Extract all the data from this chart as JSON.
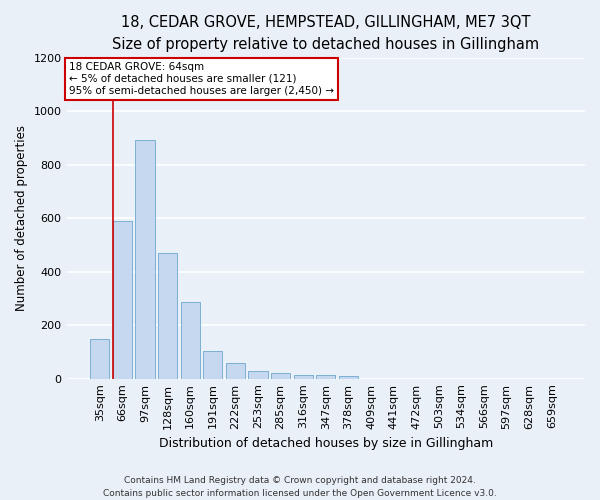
{
  "title1": "18, CEDAR GROVE, HEMPSTEAD, GILLINGHAM, ME7 3QT",
  "title2": "Size of property relative to detached houses in Gillingham",
  "xlabel": "Distribution of detached houses by size in Gillingham",
  "ylabel": "Number of detached properties",
  "categories": [
    "35sqm",
    "66sqm",
    "97sqm",
    "128sqm",
    "160sqm",
    "191sqm",
    "222sqm",
    "253sqm",
    "285sqm",
    "316sqm",
    "347sqm",
    "378sqm",
    "409sqm",
    "441sqm",
    "472sqm",
    "503sqm",
    "534sqm",
    "566sqm",
    "597sqm",
    "628sqm",
    "659sqm"
  ],
  "values": [
    150,
    590,
    890,
    470,
    285,
    105,
    60,
    28,
    20,
    14,
    12,
    10,
    0,
    0,
    0,
    0,
    0,
    0,
    0,
    0,
    0
  ],
  "bar_color": "#c5d8f0",
  "bar_edge_color": "#7bafd4",
  "vline_color": "#cc0000",
  "annotation_title": "18 CEDAR GROVE: 64sqm",
  "annotation_line1": "← 5% of detached houses are smaller (121)",
  "annotation_line2": "95% of semi-detached houses are larger (2,450) →",
  "annotation_box_edge": "#cc0000",
  "ylim": [
    0,
    1200
  ],
  "yticks": [
    0,
    200,
    400,
    600,
    800,
    1000,
    1200
  ],
  "footer1": "Contains HM Land Registry data © Crown copyright and database right 2024.",
  "footer2": "Contains public sector information licensed under the Open Government Licence v3.0.",
  "background_color": "#eaf0f8",
  "axes_bg_color": "#eaf0f8",
  "grid_color": "#ffffff",
  "title1_fontsize": 10.5,
  "title2_fontsize": 9.5,
  "ylabel_fontsize": 8.5,
  "xlabel_fontsize": 9,
  "tick_fontsize": 8,
  "ann_fontsize": 7.5,
  "footer_fontsize": 6.5
}
